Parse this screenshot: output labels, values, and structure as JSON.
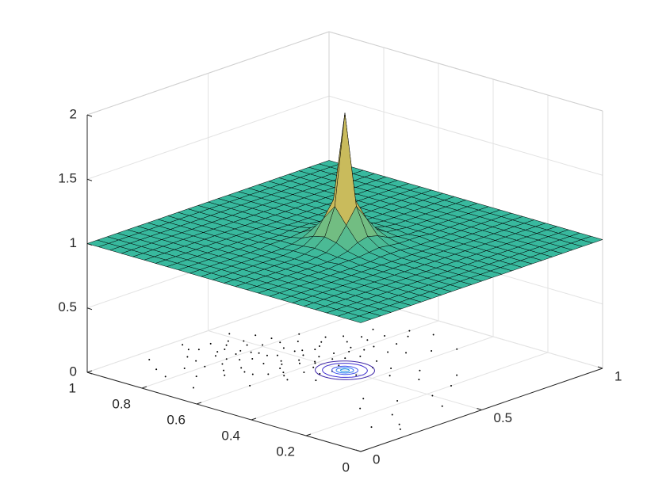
{
  "chart_data": {
    "type": "surface",
    "xlim": [
      0,
      1
    ],
    "ylim": [
      0,
      1
    ],
    "zlim": [
      0,
      2
    ],
    "xticks": [
      0,
      0.5,
      1
    ],
    "yticks": [
      0,
      0.2,
      0.4,
      0.6,
      0.8,
      1
    ],
    "zticks": [
      0,
      0.5,
      1,
      1.5,
      2
    ],
    "grid": true,
    "colormap": "parula",
    "clim": [
      0,
      2
    ],
    "surface": {
      "edge_color": "#000000",
      "x": [
        0,
        0.0417,
        0.0833,
        0.125,
        0.1667,
        0.2083,
        0.25,
        0.2917,
        0.3333,
        0.375,
        0.4167,
        0.4583,
        0.5,
        0.5417,
        0.5833,
        0.625,
        0.6667,
        0.7083,
        0.75,
        0.7917,
        0.8333,
        0.875,
        0.9167,
        0.9583,
        1
      ],
      "y": [
        0,
        0.0417,
        0.0833,
        0.125,
        0.1667,
        0.2083,
        0.25,
        0.2917,
        0.3333,
        0.375,
        0.4167,
        0.4583,
        0.5,
        0.5417,
        0.5833,
        0.625,
        0.6667,
        0.7083,
        0.75,
        0.7917,
        0.8333,
        0.875,
        0.9167,
        0.9583,
        1
      ],
      "z": [
        [
          1,
          1,
          1,
          1,
          1,
          1,
          1,
          1,
          1,
          1,
          1,
          1,
          1,
          1,
          1,
          1,
          1,
          1,
          1,
          1,
          1,
          1,
          1,
          1,
          1
        ],
        [
          1,
          1,
          1,
          1,
          1,
          1,
          1,
          1,
          1,
          1,
          1,
          1,
          1,
          1,
          1,
          1,
          1,
          1,
          1,
          1,
          1,
          1,
          1,
          1,
          1
        ],
        [
          1,
          1,
          1,
          1,
          1,
          1,
          1,
          1,
          1,
          1,
          1,
          1,
          1,
          1,
          1,
          1,
          1,
          1,
          1,
          1,
          1,
          1,
          1,
          1,
          1
        ],
        [
          1,
          1,
          1,
          1,
          1,
          1,
          1,
          1,
          1,
          1,
          1,
          1,
          1,
          1,
          1,
          1,
          1,
          1,
          1,
          1,
          1,
          1,
          1,
          1,
          1
        ],
        [
          1,
          1,
          1,
          1,
          1,
          1,
          1,
          1,
          1,
          1,
          1,
          1,
          1,
          1,
          1,
          1,
          1,
          1,
          1,
          1,
          1,
          1,
          1,
          1,
          1
        ],
        [
          1,
          1,
          1,
          1,
          1,
          1,
          1,
          1,
          1,
          1,
          1,
          1,
          1,
          1,
          1,
          1,
          1,
          1,
          1,
          1,
          1,
          1,
          1,
          1,
          1
        ],
        [
          1,
          1,
          1,
          1,
          1,
          1,
          1,
          1,
          1,
          1,
          1,
          1,
          1,
          1,
          1,
          1,
          1,
          1,
          1,
          1,
          1,
          1,
          1,
          1,
          1
        ],
        [
          1,
          1,
          1,
          1,
          1,
          1,
          1,
          1,
          1,
          1,
          1,
          1,
          1,
          1,
          1,
          1,
          1,
          1,
          1,
          1,
          1,
          1,
          1,
          1,
          1
        ],
        [
          1,
          1,
          1,
          1,
          1,
          1,
          1,
          1,
          1,
          1,
          1,
          1.01,
          1.01,
          1.01,
          1,
          1,
          1,
          1,
          1,
          1,
          1,
          1,
          1,
          1,
          1
        ],
        [
          1,
          1,
          1,
          1,
          1,
          1,
          1,
          1,
          1.01,
          1.01,
          1.01,
          1.02,
          1.03,
          1.02,
          1.01,
          1.01,
          1.01,
          1,
          1,
          1,
          1,
          1,
          1,
          1,
          1
        ],
        [
          1,
          1,
          1,
          1,
          1,
          1,
          1,
          1,
          1,
          1.01,
          1.03,
          1.07,
          1.09,
          1.07,
          1.03,
          1.01,
          1,
          1,
          1,
          1,
          1,
          1,
          1,
          1,
          1
        ],
        [
          1,
          1,
          1,
          1,
          1,
          1,
          1,
          1,
          1.01,
          1.02,
          1.07,
          1.18,
          1.3,
          1.18,
          1.07,
          1.02,
          1.01,
          1,
          1,
          1,
          1,
          1,
          1,
          1,
          1
        ],
        [
          1,
          1,
          1,
          1,
          1,
          1,
          1,
          1,
          1.01,
          1.03,
          1.09,
          1.3,
          2,
          1.3,
          1.09,
          1.03,
          1.01,
          1,
          1,
          1,
          1,
          1,
          1,
          1,
          1
        ],
        [
          1,
          1,
          1,
          1,
          1,
          1,
          1,
          1,
          1.01,
          1.02,
          1.07,
          1.18,
          1.3,
          1.18,
          1.07,
          1.02,
          1.01,
          1,
          1,
          1,
          1,
          1,
          1,
          1,
          1
        ],
        [
          1,
          1,
          1,
          1,
          1,
          1,
          1,
          1,
          1,
          1.01,
          1.03,
          1.07,
          1.09,
          1.07,
          1.03,
          1.01,
          1,
          1,
          1,
          1,
          1,
          1,
          1,
          1,
          1
        ],
        [
          1,
          1,
          1,
          1,
          1,
          1,
          1,
          1,
          1.01,
          1.01,
          1.01,
          1.02,
          1.03,
          1.02,
          1.01,
          1.01,
          1.01,
          1,
          1,
          1,
          1,
          1,
          1,
          1,
          1
        ],
        [
          1,
          1,
          1,
          1,
          1,
          1,
          1,
          1,
          1,
          1,
          1,
          1.01,
          1.01,
          1.01,
          1,
          1,
          1,
          1,
          1,
          1,
          1,
          1,
          1,
          1,
          1
        ],
        [
          1,
          1,
          1,
          1,
          1,
          1,
          1,
          1,
          1,
          1,
          1,
          1,
          1,
          1,
          1,
          1,
          1,
          1,
          1,
          1,
          1,
          1,
          1,
          1,
          1
        ],
        [
          1,
          1,
          1,
          1,
          1,
          1,
          1,
          1,
          1,
          1,
          1,
          1,
          1,
          1,
          1,
          1,
          1,
          1,
          1,
          1,
          1,
          1,
          1,
          1,
          1
        ],
        [
          1,
          1,
          1,
          1,
          1,
          1,
          1,
          1,
          1,
          1,
          1,
          1,
          1,
          1,
          1,
          1,
          1,
          1,
          1,
          1,
          1,
          1,
          1,
          1,
          1
        ],
        [
          1,
          1,
          1,
          1,
          1,
          1,
          1,
          1,
          1,
          1,
          1,
          1,
          1,
          1,
          1,
          1,
          1,
          1,
          1,
          1,
          1,
          1,
          1,
          1,
          1
        ],
        [
          1,
          1,
          1,
          1,
          1,
          1,
          1,
          1,
          1,
          1,
          1,
          1,
          1,
          1,
          1,
          1,
          1,
          1,
          1,
          1,
          1,
          1,
          1,
          1,
          1
        ],
        [
          1,
          1,
          1,
          1,
          1,
          1,
          1,
          1,
          1,
          1,
          1,
          1,
          1,
          1,
          1,
          1,
          1,
          1,
          1,
          1,
          1,
          1,
          1,
          1,
          1
        ],
        [
          1,
          1,
          1,
          1,
          1,
          1,
          1,
          1,
          1,
          1,
          1,
          1,
          1,
          1,
          1,
          1,
          1,
          1,
          1,
          1,
          1,
          1,
          1,
          1,
          1
        ],
        [
          1,
          1,
          1,
          1,
          1,
          1,
          1,
          1,
          1,
          1,
          1,
          1,
          1,
          1,
          1,
          1,
          1,
          1,
          1,
          1,
          1,
          1,
          1,
          1,
          1
        ]
      ]
    },
    "contours": {
      "levels": [
        1.1,
        1.2,
        1.4,
        1.6,
        1.8
      ],
      "colors": [
        "#3e26a8",
        "#4030d0",
        "#4356ee",
        "#2e7bf5",
        "#1f96e0"
      ]
    },
    "scatter": {
      "color": "#000000",
      "x": [
        0.31,
        0.42,
        0.28,
        0.55,
        0.47,
        0.36,
        0.62,
        0.39,
        0.51,
        0.33,
        0.44,
        0.58,
        0.27,
        0.49,
        0.66,
        0.35,
        0.41,
        0.53,
        0.71,
        0.38,
        0.45,
        0.3,
        0.57,
        0.48,
        0.64,
        0.34,
        0.52,
        0.43,
        0.69,
        0.37,
        0.6,
        0.46,
        0.29,
        0.55,
        0.4,
        0.74,
        0.5,
        0.32,
        0.63,
        0.44,
        0.56,
        0.26,
        0.47,
        0.68,
        0.39,
        0.59,
        0.35,
        0.52,
        0.77,
        0.42,
        0.61,
        0.48,
        0.33,
        0.54,
        0.72,
        0.4,
        0.58,
        0.45,
        0.3,
        0.65,
        0.5,
        0.37,
        0.8,
        0.43,
        0.56,
        0.24,
        0.62,
        0.47,
        0.35,
        0.7,
        0.53,
        0.41,
        0.84,
        0.57,
        0.46,
        0.21,
        0.67,
        0.52,
        0.38,
        0.75,
        0.6,
        0.44,
        0.18,
        0.49,
        0.82,
        0.36,
        0.73,
        0.15,
        0.55,
        0.88,
        0.22,
        0.64,
        0.12,
        0.79,
        0.58,
        0.9,
        0.2,
        0.68,
        0.1,
        0.85,
        0.3,
        0.25,
        0.4,
        0.18,
        0.35,
        0.45,
        0.28,
        0.5,
        0.22,
        0.6
      ],
      "y": [
        0.78,
        0.66,
        0.85,
        0.59,
        0.72,
        0.91,
        0.55,
        0.7,
        0.81,
        0.63,
        0.88,
        0.68,
        0.74,
        0.6,
        0.62,
        0.8,
        0.57,
        0.75,
        0.58,
        0.86,
        0.77,
        0.69,
        0.83,
        0.65,
        0.71,
        0.93,
        0.54,
        0.82,
        0.66,
        0.61,
        0.76,
        0.58,
        0.89,
        0.7,
        0.75,
        0.63,
        0.87,
        0.72,
        0.6,
        0.68,
        0.79,
        0.8,
        0.52,
        0.73,
        0.64,
        0.62,
        0.84,
        0.67,
        0.55,
        0.92,
        0.69,
        0.84,
        0.56,
        0.63,
        0.7,
        0.81,
        0.57,
        0.74,
        0.66,
        0.8,
        0.61,
        0.77,
        0.62,
        0.53,
        0.88,
        0.71,
        0.49,
        0.9,
        0.59,
        0.52,
        0.71,
        0.86,
        0.57,
        0.46,
        0.63,
        0.83,
        0.58,
        0.94,
        0.5,
        0.66,
        0.42,
        0.79,
        0.76,
        0.45,
        0.68,
        0.97,
        0.48,
        0.88,
        0.38,
        0.6,
        0.6,
        0.35,
        0.82,
        0.44,
        0.3,
        0.53,
        0.95,
        0.25,
        0.7,
        0.4,
        0.15,
        0.08,
        0.22,
        0.12,
        0.3,
        0.1,
        0.25,
        0.18,
        0.05,
        0.2
      ]
    }
  }
}
